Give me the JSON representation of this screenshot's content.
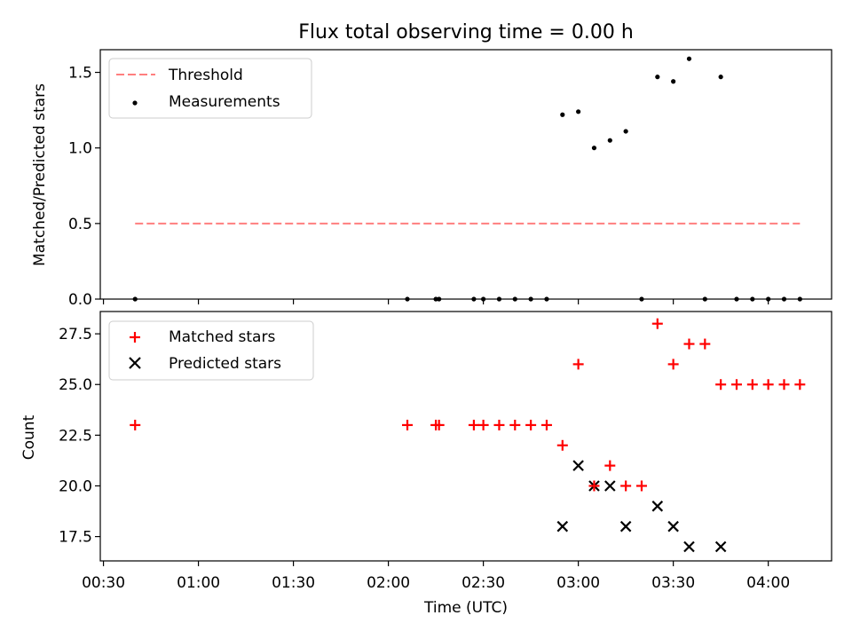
{
  "chart_data": [
    {
      "type": "scatter",
      "title": "Flux total observing time = 0.00 h",
      "xlabel": "",
      "ylabel": "Matched/Predicted stars",
      "xlim": [
        "00:29",
        "04:20"
      ],
      "ylim": [
        0.0,
        1.65
      ],
      "yticks": [
        "0.0",
        "0.5",
        "1.0",
        "1.5"
      ],
      "legend_position": "upper-left",
      "threshold": {
        "name": "Threshold",
        "y": 0.5,
        "x_start": "00:40",
        "x_end": "04:10",
        "color": "#ff7f7f"
      },
      "series": [
        {
          "name": "Measurements",
          "color": "#000000",
          "points": [
            {
              "x": "00:40",
              "y": 0.0
            },
            {
              "x": "02:06",
              "y": 0.0
            },
            {
              "x": "02:15",
              "y": 0.0
            },
            {
              "x": "02:16",
              "y": 0.0
            },
            {
              "x": "02:27",
              "y": 0.0
            },
            {
              "x": "02:30",
              "y": 0.0
            },
            {
              "x": "02:35",
              "y": 0.0
            },
            {
              "x": "02:40",
              "y": 0.0
            },
            {
              "x": "02:45",
              "y": 0.0
            },
            {
              "x": "02:50",
              "y": 0.0
            },
            {
              "x": "02:55",
              "y": 1.22
            },
            {
              "x": "03:00",
              "y": 1.24
            },
            {
              "x": "03:05",
              "y": 1.0
            },
            {
              "x": "03:10",
              "y": 1.05
            },
            {
              "x": "03:15",
              "y": 1.11
            },
            {
              "x": "03:20",
              "y": 0.0
            },
            {
              "x": "03:25",
              "y": 1.47
            },
            {
              "x": "03:30",
              "y": 1.44
            },
            {
              "x": "03:35",
              "y": 1.59
            },
            {
              "x": "03:40",
              "y": 0.0
            },
            {
              "x": "03:45",
              "y": 1.47
            },
            {
              "x": "03:50",
              "y": 0.0
            },
            {
              "x": "03:55",
              "y": 0.0
            },
            {
              "x": "04:00",
              "y": 0.0
            },
            {
              "x": "04:05",
              "y": 0.0
            },
            {
              "x": "04:10",
              "y": 0.0
            }
          ]
        }
      ]
    },
    {
      "type": "scatter",
      "title": "",
      "xlabel": "Time (UTC)",
      "ylabel": "Count",
      "xlim": [
        "00:29",
        "04:20"
      ],
      "ylim": [
        16.3,
        28.6
      ],
      "yticks": [
        "17.5",
        "20.0",
        "22.5",
        "25.0",
        "27.5"
      ],
      "xticks": [
        "00:30",
        "01:00",
        "01:30",
        "02:00",
        "02:30",
        "03:00",
        "03:30",
        "04:00"
      ],
      "legend_position": "upper-left",
      "series": [
        {
          "name": "Matched stars",
          "marker": "plus",
          "color": "#ff0000",
          "points": [
            {
              "x": "00:40",
              "y": 23
            },
            {
              "x": "02:06",
              "y": 23
            },
            {
              "x": "02:15",
              "y": 23
            },
            {
              "x": "02:16",
              "y": 23
            },
            {
              "x": "02:27",
              "y": 23
            },
            {
              "x": "02:30",
              "y": 23
            },
            {
              "x": "02:35",
              "y": 23
            },
            {
              "x": "02:40",
              "y": 23
            },
            {
              "x": "02:45",
              "y": 23
            },
            {
              "x": "02:50",
              "y": 23
            },
            {
              "x": "02:55",
              "y": 22
            },
            {
              "x": "03:00",
              "y": 26
            },
            {
              "x": "03:05",
              "y": 20
            },
            {
              "x": "03:10",
              "y": 21
            },
            {
              "x": "03:15",
              "y": 20
            },
            {
              "x": "03:20",
              "y": 20
            },
            {
              "x": "03:25",
              "y": 28
            },
            {
              "x": "03:30",
              "y": 26
            },
            {
              "x": "03:35",
              "y": 27
            },
            {
              "x": "03:40",
              "y": 27
            },
            {
              "x": "03:45",
              "y": 25
            },
            {
              "x": "03:50",
              "y": 25
            },
            {
              "x": "03:55",
              "y": 25
            },
            {
              "x": "04:00",
              "y": 25
            },
            {
              "x": "04:05",
              "y": 25
            },
            {
              "x": "04:10",
              "y": 25
            }
          ]
        },
        {
          "name": "Predicted stars",
          "marker": "x",
          "color": "#000000",
          "points": [
            {
              "x": "02:55",
              "y": 18
            },
            {
              "x": "03:00",
              "y": 21
            },
            {
              "x": "03:05",
              "y": 20
            },
            {
              "x": "03:10",
              "y": 20
            },
            {
              "x": "03:15",
              "y": 18
            },
            {
              "x": "03:25",
              "y": 19
            },
            {
              "x": "03:30",
              "y": 18
            },
            {
              "x": "03:35",
              "y": 17
            },
            {
              "x": "03:45",
              "y": 17
            }
          ]
        }
      ]
    }
  ]
}
